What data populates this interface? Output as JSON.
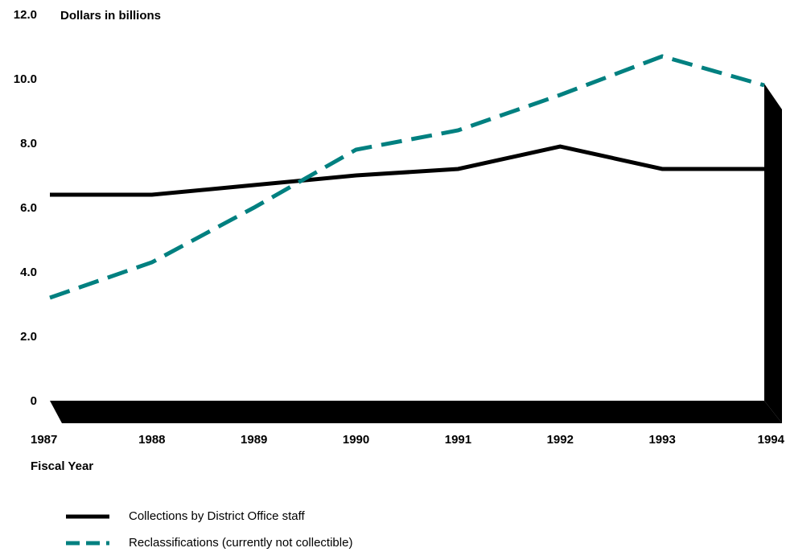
{
  "chart_data": {
    "type": "line",
    "title": "",
    "ylabel": "Dollars in billions",
    "xlabel": "Fiscal Year",
    "x": [
      "1987",
      "1988",
      "1989",
      "1990",
      "1991",
      "1992",
      "1993",
      "1994"
    ],
    "ylim": [
      0,
      12
    ],
    "yticks": [
      "0",
      "2.0",
      "4.0",
      "6.0",
      "8.0",
      "10.0",
      "12.0"
    ],
    "series": [
      {
        "name": "Collections by District Office staff",
        "values": [
          6.4,
          6.4,
          6.7,
          7.0,
          7.2,
          7.9,
          7.2,
          7.2
        ],
        "color": "#000000",
        "style": "solid"
      },
      {
        "name": "Reclassifications (currently not collectible)",
        "values": [
          3.2,
          4.3,
          6.0,
          7.8,
          8.4,
          9.5,
          10.7,
          9.8
        ],
        "color": "#008080",
        "style": "dashed"
      }
    ],
    "grid": false,
    "legend": "bottom-left"
  }
}
